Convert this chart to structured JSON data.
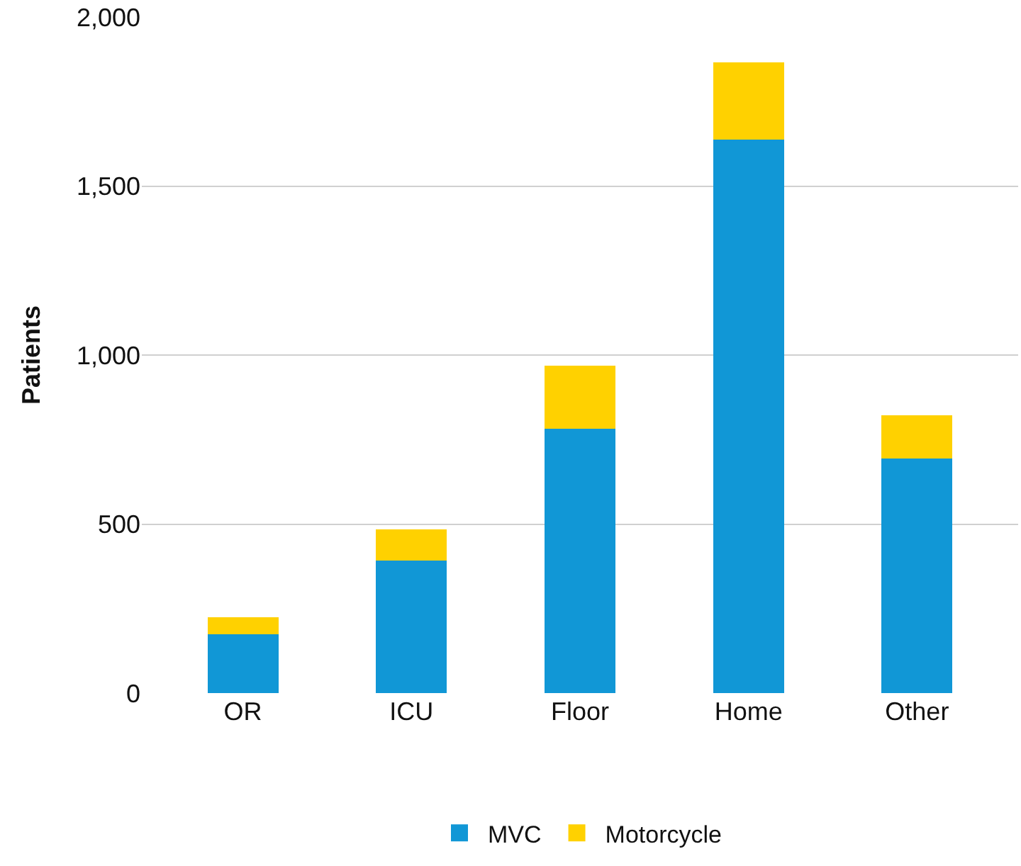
{
  "chart_data": {
    "type": "bar",
    "stacked": true,
    "ylabel": "Patients",
    "categories": [
      "OR",
      "ICU",
      "Floor",
      "Home",
      "Other"
    ],
    "series": [
      {
        "name": "MVC",
        "color": "#1197d6",
        "values": [
          175,
          392,
          781,
          1637,
          693
        ]
      },
      {
        "name": "Motorcycle",
        "color": "#ffd100",
        "values": [
          50,
          92,
          188,
          229,
          129
        ]
      }
    ],
    "ylim": [
      0,
      2000
    ],
    "yticks": [
      0,
      {
        "value": 500,
        "label": "500"
      },
      {
        "value": 1000,
        "label": "1,000"
      },
      {
        "value": 1500,
        "label": "1,500"
      },
      {
        "value": 2000,
        "label": "2,000"
      }
    ],
    "grid": "y",
    "legend": "bottom"
  }
}
